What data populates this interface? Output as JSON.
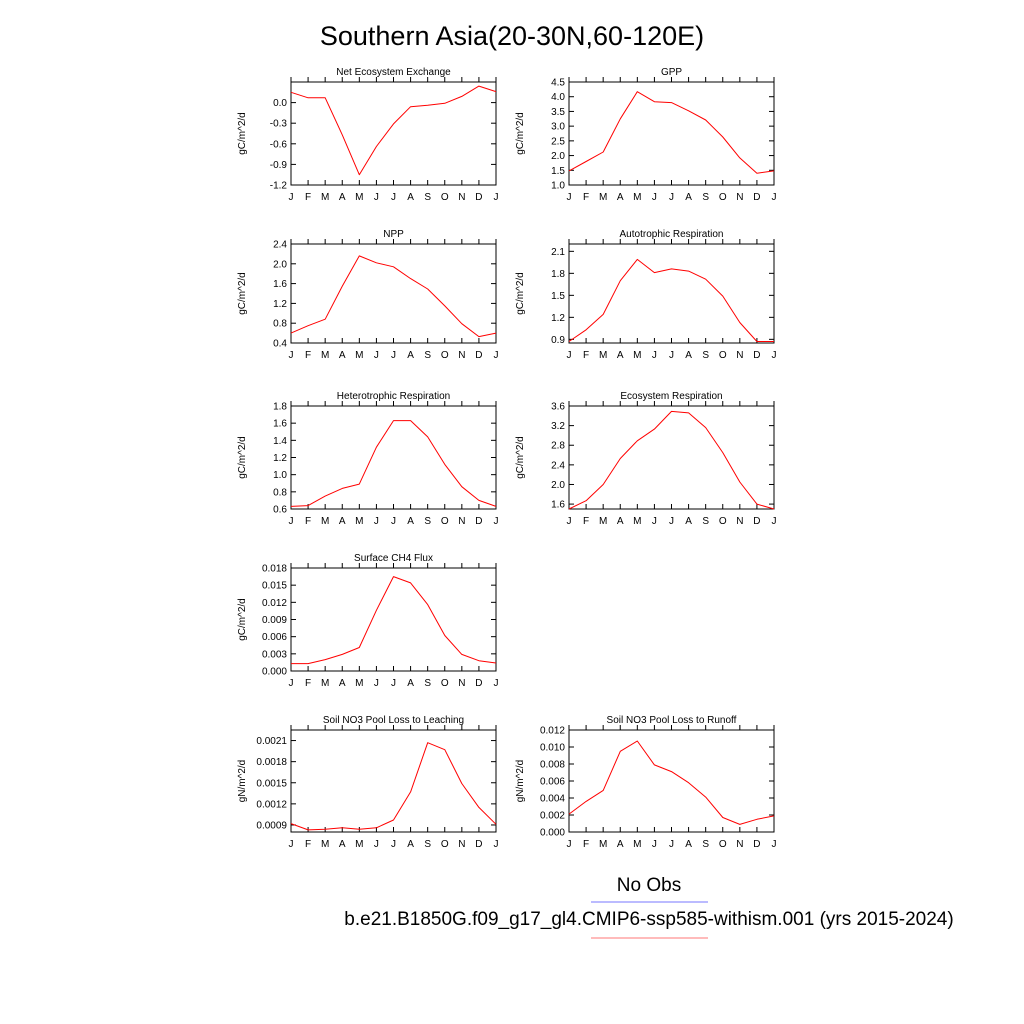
{
  "title": "Southern Asia(20-30N,60-120E)",
  "months": [
    "J",
    "F",
    "M",
    "A",
    "M",
    "J",
    "J",
    "A",
    "S",
    "O",
    "N",
    "D",
    "J"
  ],
  "legend": {
    "obs_label": "No Obs",
    "obs_color": "#7777ff",
    "model_label": "b.e21.B1850G.f09_g17_gl4.CMIP6-ssp585-withism.001 (yrs 2015-2024)",
    "model_color": "#ff7777"
  },
  "series_color": "#ff0000",
  "chart_data": [
    {
      "type": "line",
      "title": "Net Ecosystem Exchange",
      "ylabel": "gC/m^2/d",
      "ylim": [
        -1.2,
        0.3
      ],
      "yticks": [
        "0.0",
        "-0.3",
        "-0.6",
        "-0.9",
        "-1.2"
      ],
      "ytick_values": [
        0.0,
        -0.3,
        -0.6,
        -0.9,
        -1.2
      ],
      "values": [
        0.15,
        0.07,
        0.07,
        -0.47,
        -1.05,
        -0.64,
        -0.31,
        -0.06,
        -0.04,
        -0.01,
        0.09,
        0.24,
        0.16
      ]
    },
    {
      "type": "line",
      "title": "GPP",
      "ylabel": "gC/m^2/d",
      "ylim": [
        1.0,
        4.5
      ],
      "yticks": [
        "4.5",
        "4.0",
        "3.5",
        "3.0",
        "2.5",
        "2.0",
        "1.5",
        "1.0"
      ],
      "ytick_values": [
        4.5,
        4.0,
        3.5,
        3.0,
        2.5,
        2.0,
        1.5,
        1.0
      ],
      "values": [
        1.48,
        1.8,
        2.12,
        3.25,
        4.17,
        3.83,
        3.8,
        3.52,
        3.21,
        2.63,
        1.92,
        1.4,
        1.48
      ]
    },
    {
      "type": "line",
      "title": "NPP",
      "ylabel": "gC/m^2/d",
      "ylim": [
        0.4,
        2.4
      ],
      "yticks": [
        "2.4",
        "2.0",
        "1.6",
        "1.2",
        "0.8",
        "0.4"
      ],
      "ytick_values": [
        2.4,
        2.0,
        1.6,
        1.2,
        0.8,
        0.4
      ],
      "values": [
        0.6,
        0.75,
        0.88,
        1.55,
        2.16,
        2.02,
        1.94,
        1.7,
        1.49,
        1.15,
        0.79,
        0.53,
        0.6
      ]
    },
    {
      "type": "line",
      "title": "Autotrophic Respiration",
      "ylabel": "gC/m^2/d",
      "ylim": [
        0.85,
        2.2
      ],
      "yticks": [
        "2.1",
        "1.8",
        "1.5",
        "1.2",
        "0.9"
      ],
      "ytick_values": [
        2.1,
        1.8,
        1.5,
        1.2,
        0.9
      ],
      "values": [
        0.87,
        1.03,
        1.24,
        1.7,
        1.99,
        1.81,
        1.86,
        1.83,
        1.72,
        1.49,
        1.13,
        0.87,
        0.87
      ]
    },
    {
      "type": "line",
      "title": "Heterotrophic Respiration",
      "ylabel": "gC/m^2/d",
      "ylim": [
        0.6,
        1.8
      ],
      "yticks": [
        "1.8",
        "1.6",
        "1.4",
        "1.2",
        "1.0",
        "0.8",
        "0.6"
      ],
      "ytick_values": [
        1.8,
        1.6,
        1.4,
        1.2,
        1.0,
        0.8,
        0.6
      ],
      "values": [
        0.63,
        0.64,
        0.75,
        0.84,
        0.89,
        1.32,
        1.63,
        1.63,
        1.44,
        1.12,
        0.86,
        0.7,
        0.63
      ]
    },
    {
      "type": "line",
      "title": "Ecosystem Respiration",
      "ylabel": "gC/m^2/d",
      "ylim": [
        1.5,
        3.6
      ],
      "yticks": [
        "3.6",
        "3.2",
        "2.8",
        "2.4",
        "2.0",
        "1.6"
      ],
      "ytick_values": [
        3.6,
        3.2,
        2.8,
        2.4,
        2.0,
        1.6
      ],
      "values": [
        1.5,
        1.67,
        2.0,
        2.53,
        2.89,
        3.13,
        3.49,
        3.46,
        3.16,
        2.65,
        2.05,
        1.6,
        1.5
      ]
    },
    {
      "type": "line",
      "title": "Surface CH4 Flux",
      "ylabel": "gC/m^2/d",
      "ylim": [
        0.0,
        0.018
      ],
      "yticks": [
        "0.018",
        "0.015",
        "0.012",
        "0.009",
        "0.006",
        "0.003",
        "0.000"
      ],
      "ytick_values": [
        0.018,
        0.015,
        0.012,
        0.009,
        0.006,
        0.003,
        0.0
      ],
      "values": [
        0.0013,
        0.0013,
        0.002,
        0.0029,
        0.0041,
        0.0106,
        0.0165,
        0.0154,
        0.0116,
        0.0062,
        0.0029,
        0.0018,
        0.0014
      ]
    },
    {
      "type": "line",
      "title": "Soil NO3 Pool Loss to Leaching",
      "ylabel": "gN/m^2/d",
      "ylim": [
        0.0008,
        0.00225
      ],
      "yticks": [
        "0.0021",
        "0.0018",
        "0.0015",
        "0.0012",
        "0.0009"
      ],
      "ytick_values": [
        0.0021,
        0.0018,
        0.0015,
        0.0012,
        0.0009
      ],
      "values": [
        0.00092,
        0.00083,
        0.00084,
        0.00086,
        0.00084,
        0.00086,
        0.00097,
        0.00137,
        0.00207,
        0.00197,
        0.00149,
        0.00115,
        0.00091
      ]
    },
    {
      "type": "line",
      "title": "Soil NO3 Pool Loss to Runoff",
      "ylabel": "gN/m^2/d",
      "ylim": [
        0.0,
        0.012
      ],
      "yticks": [
        "0.012",
        "0.010",
        "0.008",
        "0.006",
        "0.004",
        "0.002",
        "0.000"
      ],
      "ytick_values": [
        0.012,
        0.01,
        0.008,
        0.006,
        0.004,
        0.002,
        0.0
      ],
      "values": [
        0.0021,
        0.0036,
        0.0049,
        0.0095,
        0.0107,
        0.0079,
        0.0071,
        0.0058,
        0.0041,
        0.0017,
        0.0009,
        0.0015,
        0.0019
      ]
    }
  ]
}
